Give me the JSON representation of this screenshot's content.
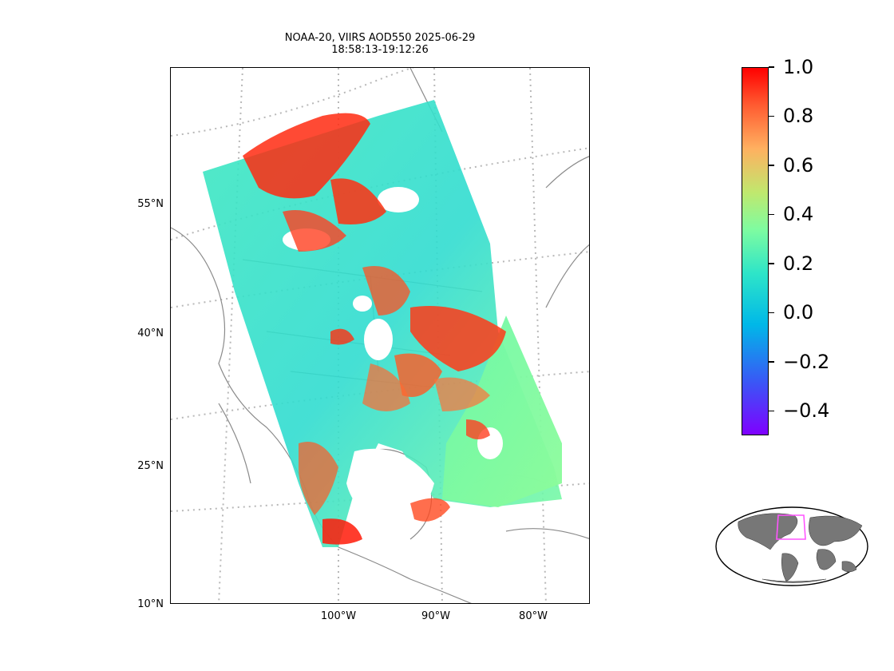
{
  "title": {
    "line1": "NOAA-20, VIIRS AOD550 2025-06-29",
    "line2": "18:58:13-19:12:26"
  },
  "map": {
    "lat_labels": [
      "55°N",
      "40°N",
      "25°N",
      "10°N"
    ],
    "lon_labels": [
      "100°W",
      "90°W",
      "80°W"
    ],
    "projection": "conic",
    "gridlines": "dotted-gray",
    "data_colors": {
      "low": "#2ee5c8",
      "mid": "#7ffca0",
      "high": "#ff0000"
    }
  },
  "colorbar": {
    "labels": [
      "1.0",
      "0.8",
      "0.6",
      "0.4",
      "0.2",
      "0.0",
      "−0.2",
      "−0.4"
    ],
    "values": [
      1.0,
      0.8,
      0.6,
      0.4,
      0.2,
      0.0,
      -0.2,
      -0.4
    ],
    "vmin": -0.5,
    "vmax": 1.0,
    "colormap": "rainbow"
  },
  "inset": {
    "type": "world-globe",
    "highlight_color": "#ff55ff",
    "land_color": "#777777"
  }
}
